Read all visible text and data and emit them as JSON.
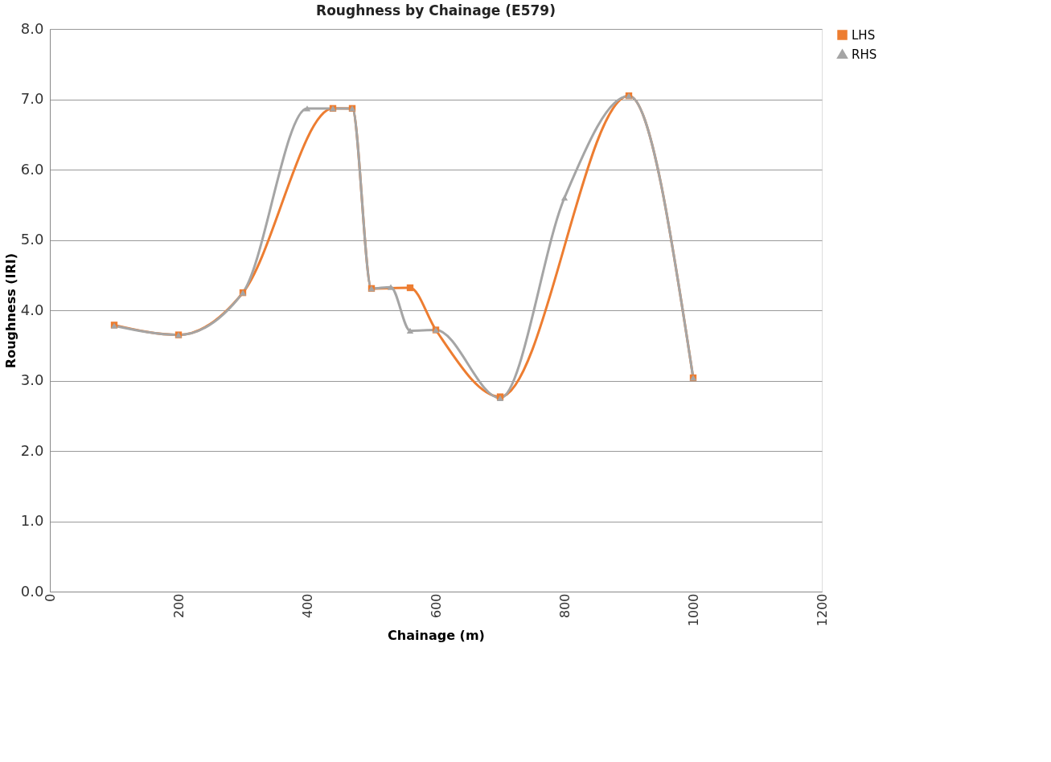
{
  "chart_data": {
    "type": "line",
    "title": "Roughness by Chainage (E579)",
    "xlabel": "Chainage (m)",
    "ylabel": "Roughness (IRI)",
    "xlim": [
      0,
      1200
    ],
    "xticks": [
      0,
      200,
      400,
      600,
      800,
      1000,
      1200
    ],
    "ylim": [
      0,
      8
    ],
    "yticks": [
      {
        "value": 0,
        "label": "0.0"
      },
      {
        "value": 1,
        "label": "1.0"
      },
      {
        "value": 2,
        "label": "2.0"
      },
      {
        "value": 3,
        "label": "3.0"
      },
      {
        "value": 4,
        "label": "4.0"
      },
      {
        "value": 5,
        "label": "5.0"
      },
      {
        "value": 6,
        "label": "6.0"
      },
      {
        "value": 7,
        "label": "7.0"
      },
      {
        "value": 8,
        "label": "8.0"
      }
    ],
    "grid": "y",
    "legend": "right",
    "line_style": "solid",
    "series": [
      {
        "name": "LHS",
        "color": "#ed7d31",
        "marker": "square",
        "x": [
          100,
          200,
          300,
          440,
          470,
          500,
          560,
          600,
          700,
          900,
          1000
        ],
        "values": [
          3.79,
          3.65,
          4.25,
          6.87,
          6.87,
          4.31,
          4.32,
          3.72,
          2.77,
          7.05,
          3.04
        ]
      },
      {
        "name": "RHS",
        "color": "#a5a5a5",
        "marker": "triangle",
        "x": [
          100,
          200,
          300,
          400,
          440,
          470,
          500,
          530,
          560,
          600,
          700,
          800,
          900,
          1000
        ],
        "values": [
          3.78,
          3.65,
          4.25,
          6.87,
          6.87,
          6.87,
          4.31,
          4.33,
          3.71,
          3.72,
          2.75,
          5.6,
          7.05,
          3.04
        ]
      }
    ]
  }
}
